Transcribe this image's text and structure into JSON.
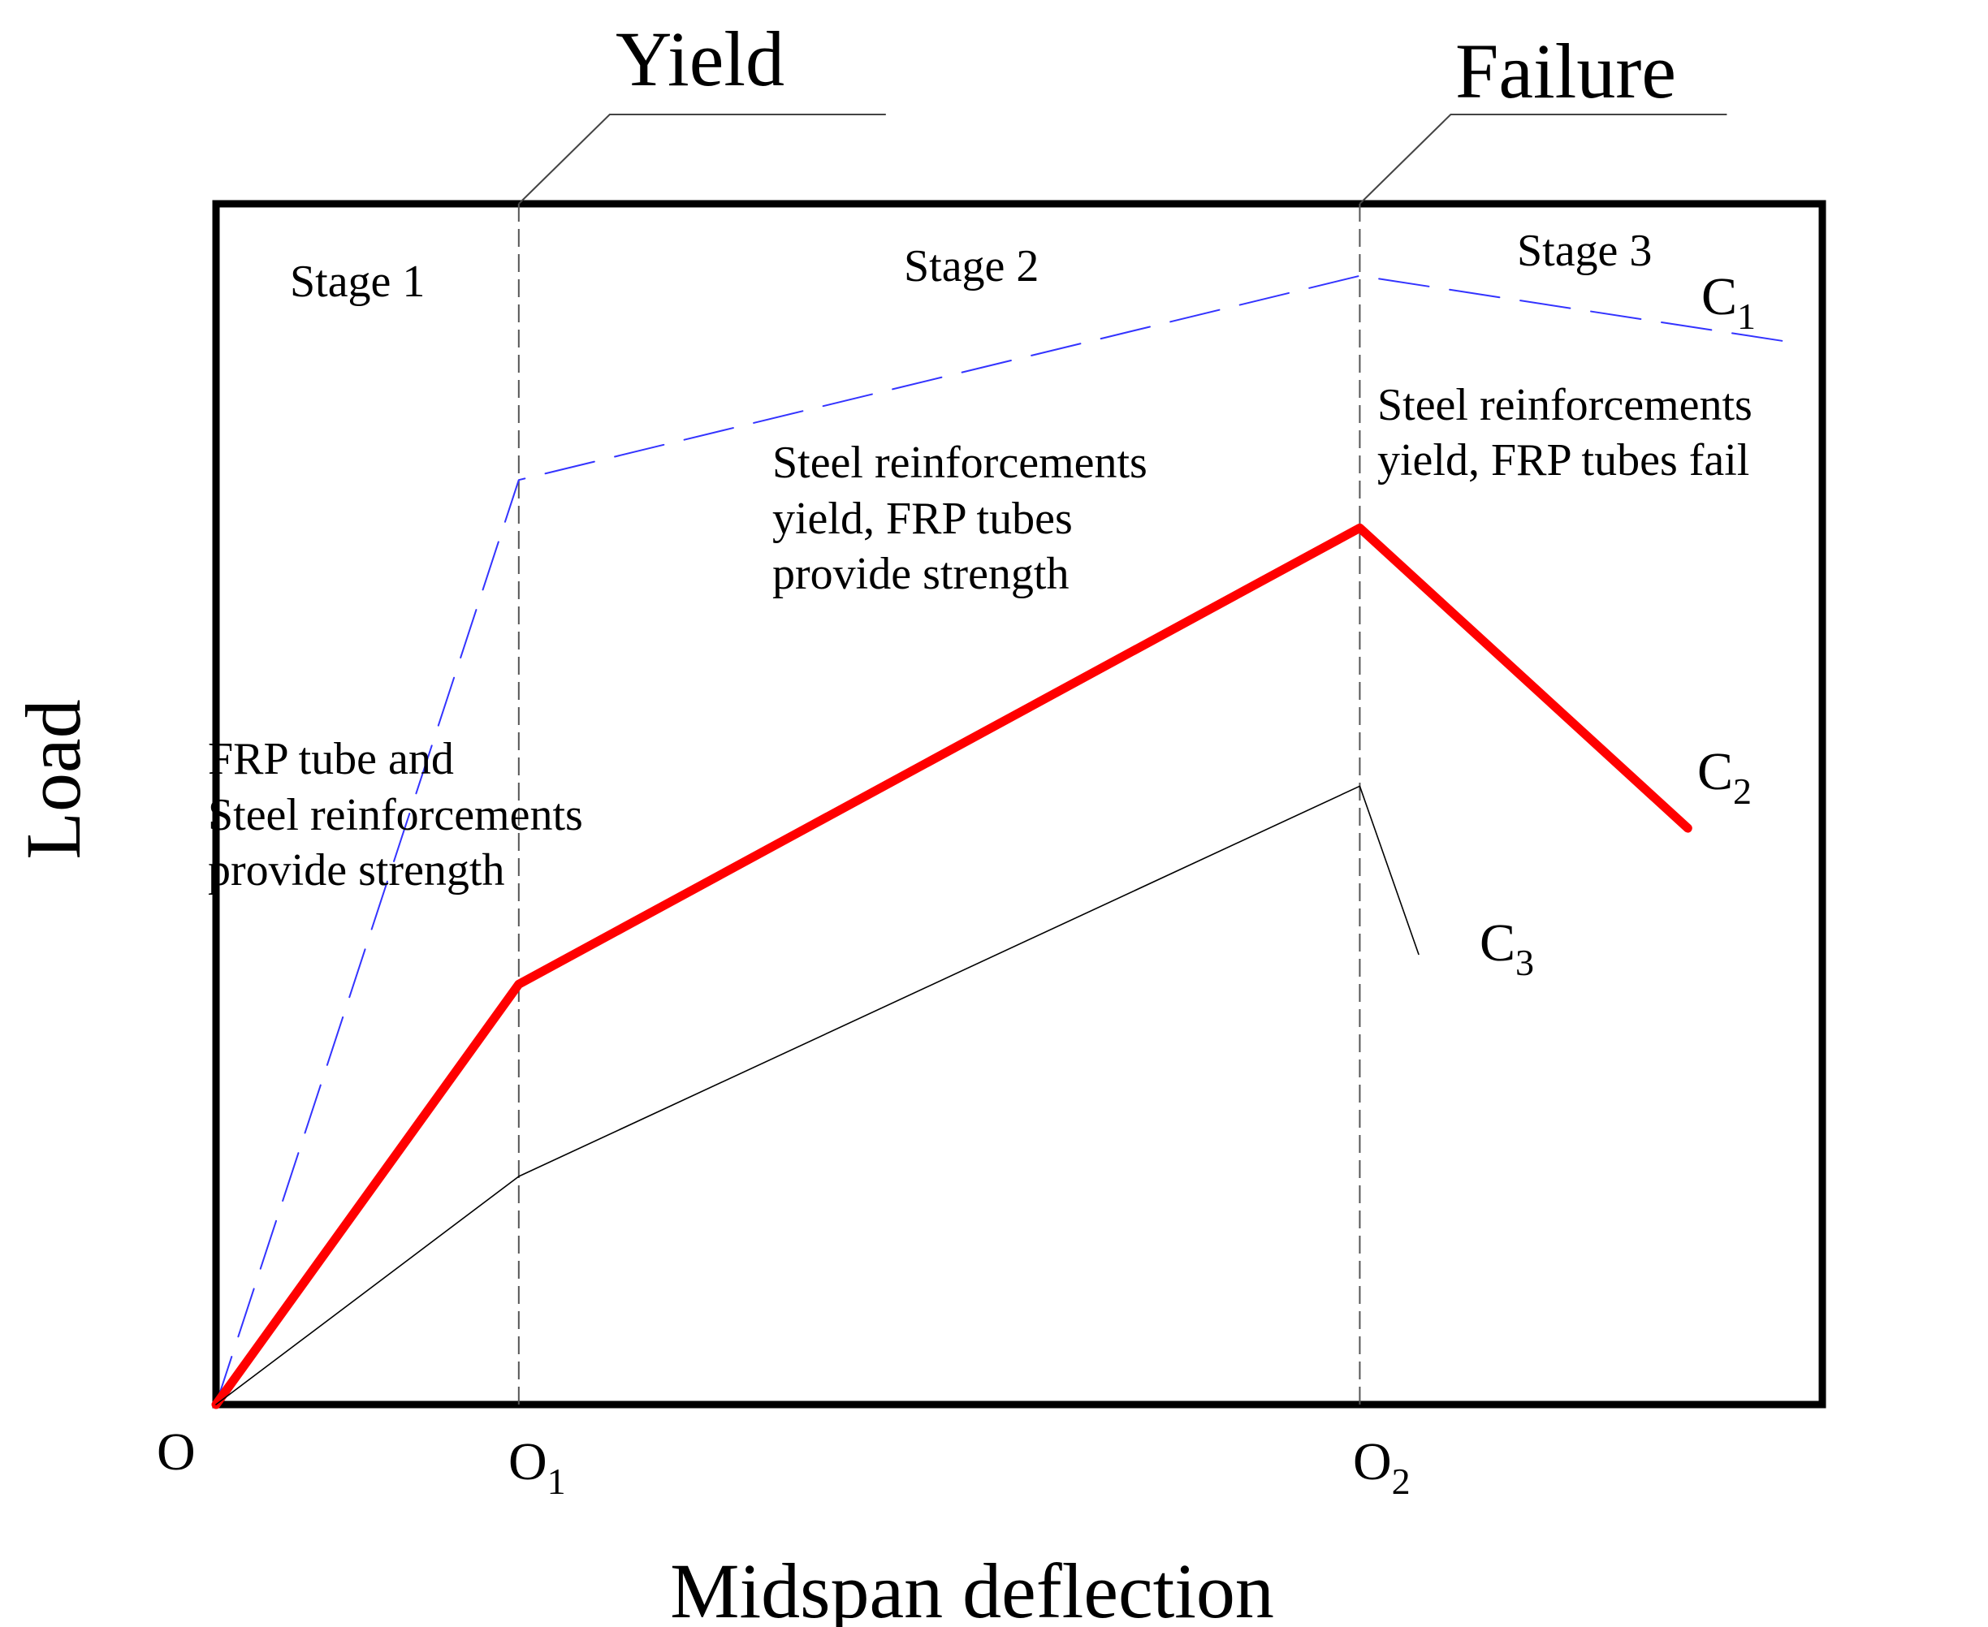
{
  "chart_data": {
    "type": "line",
    "title": "",
    "xlabel": "Midspan deflection",
    "ylabel": "Load",
    "xlim": [
      0,
      1.91
    ],
    "ylim": [
      0,
      1.0
    ],
    "grid": false,
    "origin_label": "O",
    "x_ticks": [
      {
        "x": 0.36,
        "base": "O",
        "sub": "1"
      },
      {
        "x": 1.36,
        "base": "O",
        "sub": "2"
      }
    ],
    "markers": [
      {
        "x": 0.36,
        "label": "Yield"
      },
      {
        "x": 1.36,
        "label": "Failure"
      }
    ],
    "stages": [
      {
        "label": "Stage 1",
        "description": [
          "FRP tube and",
          "Steel reinforcements",
          "provide strength"
        ]
      },
      {
        "label": "Stage 2",
        "description": [
          "Steel reinforcements",
          "yield, FRP tubes",
          "provide strength"
        ]
      },
      {
        "label": "Stage 3",
        "description": [
          "Steel reinforcements",
          "yield, FRP tubes fail"
        ]
      }
    ],
    "series": [
      {
        "name": "C",
        "sub": "1",
        "style": "dashed",
        "color": "#3333ff",
        "x": [
          0,
          0.36,
          1.36,
          1.87
        ],
        "y": [
          0,
          0.77,
          0.94,
          0.885
        ]
      },
      {
        "name": "C",
        "sub": "2",
        "style": "thick",
        "color": "#ff0000",
        "x": [
          0,
          0.36,
          1.36,
          1.75
        ],
        "y": [
          0,
          0.35,
          0.73,
          0.48
        ]
      },
      {
        "name": "C",
        "sub": "3",
        "style": "thin",
        "color": "#000000",
        "x": [
          0,
          0.36,
          1.36,
          1.43
        ],
        "y": [
          0,
          0.19,
          0.515,
          0.375
        ]
      }
    ]
  }
}
